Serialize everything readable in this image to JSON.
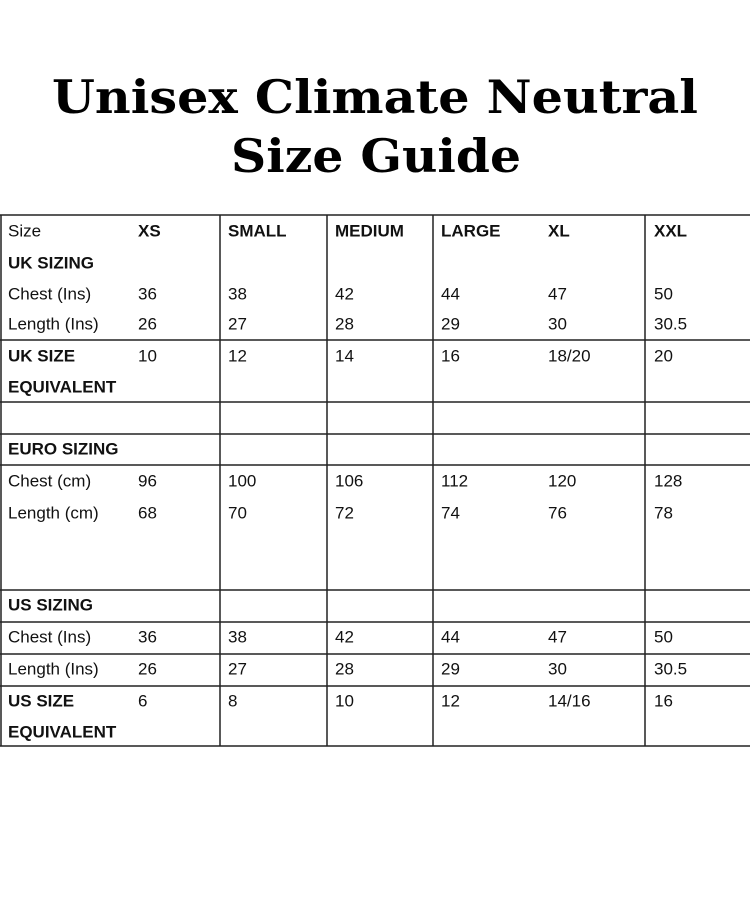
{
  "title": [
    "Unisex Climate Neutral",
    "Size Guide"
  ],
  "table": {
    "header": [
      "Size",
      "XS",
      "SMALL",
      "MEDIUM",
      "LARGE",
      "XL",
      "XXL"
    ],
    "rows": [
      {
        "label": [
          "UK SIZING"
        ],
        "bold": true
      },
      {
        "label": [
          "Chest (Ins)"
        ],
        "values": [
          36,
          38,
          42,
          44,
          47,
          50
        ]
      },
      {
        "label": [
          "Length (Ins)"
        ],
        "values": [
          26,
          27,
          28,
          29,
          30,
          30.5
        ]
      },
      {
        "label": [
          "UK SIZE",
          "EQUIVALENT"
        ],
        "bold": true,
        "values": [
          10,
          12,
          14,
          16,
          "18/20",
          20
        ]
      },
      {
        "label": [
          "EURO SIZING"
        ],
        "bold": true
      },
      {
        "label": [
          "Chest (cm)"
        ],
        "values": [
          96,
          100,
          106,
          112,
          120,
          128
        ]
      },
      {
        "label": [
          "Length (cm)"
        ],
        "values": [
          68,
          70,
          72,
          74,
          76,
          78
        ]
      },
      {
        "label": [
          "US SIZING"
        ],
        "bold": true
      },
      {
        "label": [
          "Chest (Ins)"
        ],
        "values": [
          36,
          38,
          42,
          44,
          47,
          50
        ]
      },
      {
        "label": [
          "Length (Ins)"
        ],
        "values": [
          26,
          27,
          28,
          29,
          30,
          30.5
        ]
      },
      {
        "label": [
          "US SIZE",
          "EQUIVALENT"
        ],
        "bold": true,
        "values": [
          6,
          8,
          10,
          12,
          "14/16",
          16
        ]
      }
    ]
  }
}
